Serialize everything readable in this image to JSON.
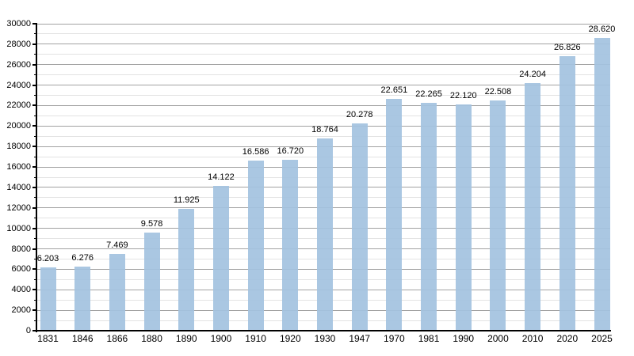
{
  "page": {
    "background": "#ffffff"
  },
  "chart_data": {
    "type": "bar",
    "title": "",
    "subtitle": "",
    "xlabel": "",
    "ylabel": "",
    "legend": "none",
    "grid": "on",
    "categories": [
      "1831",
      "1846",
      "1866",
      "1880",
      "1890",
      "1900",
      "1910",
      "1920",
      "1930",
      "1947",
      "1970",
      "1981",
      "1990",
      "2000",
      "2010",
      "2020",
      "2025"
    ],
    "values": [
      6203,
      6276,
      7469,
      9578,
      11925,
      14122,
      16586,
      16720,
      18764,
      20278,
      22651,
      22265,
      22120,
      22508,
      24204,
      26826,
      28620
    ],
    "value_labels": [
      "6.203",
      "6.276",
      "7.469",
      "9.578",
      "11.925",
      "14.122",
      "16.586",
      "16.720",
      "18.764",
      "20.278",
      "22.651",
      "22.265",
      "22.120",
      "22.508",
      "24.204",
      "26.826",
      "28.620"
    ],
    "ylim": [
      0,
      30000
    ],
    "y_major_step": 2000,
    "y_minor_step": 1000,
    "y_tick_labels": [
      "0",
      "2000",
      "4000",
      "6000",
      "8000",
      "10000",
      "12000",
      "14000",
      "16000",
      "18000",
      "20000",
      "22000",
      "24000",
      "26000",
      "28000",
      "30000"
    ],
    "colors": {
      "bar": "#a3c2e0",
      "grid_major": "#a2a2a2",
      "grid_minor": "#e3e3e3",
      "axis": "#000000",
      "text": "#000000",
      "background": "#ffffff"
    }
  }
}
